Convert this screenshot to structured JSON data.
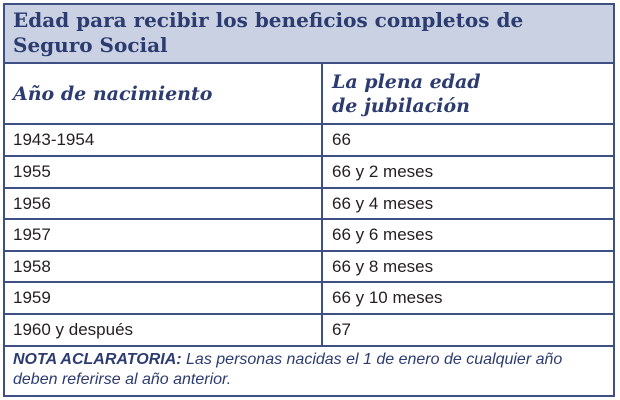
{
  "title": "Edad para recibir los beneficios completos de Seguro Social",
  "header": {
    "col1": "Año de nacimiento",
    "col2": "La plena edad\nde jubilación"
  },
  "rows": [
    {
      "year": "1943-1954",
      "age": "66"
    },
    {
      "year": "1955",
      "age": "66 y 2 meses"
    },
    {
      "year": "1956",
      "age": "66 y 4 meses"
    },
    {
      "year": "1957",
      "age": "66 y 6 meses"
    },
    {
      "year": "1958",
      "age": "66 y 8 meses"
    },
    {
      "year": "1959",
      "age": "66 y 10 meses"
    },
    {
      "year": "1960 y después",
      "age": "67"
    }
  ],
  "note": {
    "label": "NOTA ACLARATORIA:",
    "text": " Las personas nacidas el 1 de enero de cualquier año deben referirse al año anterior."
  }
}
